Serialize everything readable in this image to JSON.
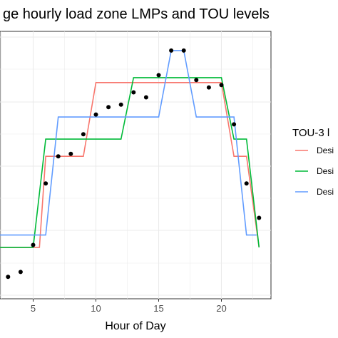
{
  "chart_data": {
    "type": "line",
    "title": "ge hourly load zone LMPs and TOU levels",
    "xlabel": "Hour of Day",
    "ylabel": "",
    "xlim": [
      0,
      24
    ],
    "ylim": [
      0,
      1
    ],
    "x_ticks": [
      5,
      10,
      15,
      20
    ],
    "grid": true,
    "legend": {
      "title": "TOU-3 l",
      "placement": "right",
      "entries": [
        {
          "label": "Desi",
          "color": "#f8766d"
        },
        {
          "label": "Desi",
          "color": "#00ba38"
        },
        {
          "label": "Desi",
          "color": "#619cff"
        }
      ]
    },
    "points": {
      "color": "#000000",
      "x": [
        3,
        4,
        5,
        6,
        7,
        8,
        9,
        10,
        11,
        12,
        13,
        14,
        15,
        16,
        17,
        18,
        19,
        20,
        21,
        22,
        23
      ],
      "y": [
        0.06,
        0.08,
        0.19,
        0.44,
        0.55,
        0.56,
        0.64,
        0.72,
        0.75,
        0.76,
        0.81,
        0.79,
        0.88,
        0.98,
        0.98,
        0.86,
        0.83,
        0.84,
        0.68,
        0.44,
        0.3
      ]
    },
    "series": [
      {
        "color": "#f8766d",
        "x": [
          0,
          5.5,
          6,
          9,
          10,
          15,
          16,
          17,
          18,
          20,
          21,
          22,
          23
        ],
        "y": [
          0.18,
          0.18,
          0.55,
          0.55,
          0.85,
          0.85,
          0.85,
          0.85,
          0.85,
          0.85,
          0.55,
          0.55,
          0.18
        ]
      },
      {
        "color": "#00ba38",
        "x": [
          0,
          5,
          6,
          12,
          13,
          20,
          21,
          22,
          23
        ],
        "y": [
          0.18,
          0.18,
          0.62,
          0.62,
          0.87,
          0.87,
          0.62,
          0.62,
          0.18
        ]
      },
      {
        "color": "#619cff",
        "x": [
          0,
          6,
          7,
          15,
          16,
          17,
          18,
          21,
          22,
          22.8
        ],
        "y": [
          0.23,
          0.23,
          0.71,
          0.71,
          0.98,
          0.98,
          0.71,
          0.71,
          0.23,
          0.23
        ]
      }
    ]
  }
}
